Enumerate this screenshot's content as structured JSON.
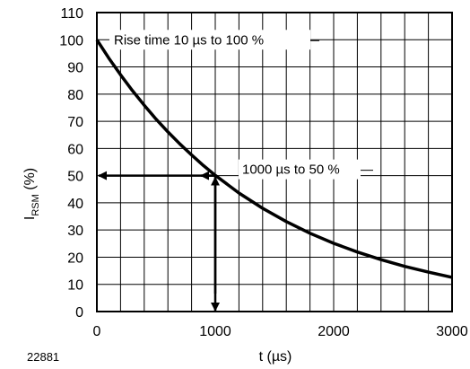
{
  "chart_data": {
    "type": "line",
    "xlabel": "t (µs)",
    "ylabel": {
      "main": "I",
      "sub": "RSM",
      "suffix": " (%)"
    },
    "xlim": [
      0,
      3000
    ],
    "ylim": [
      0,
      110
    ],
    "x_ticks": [
      0,
      1000,
      2000,
      3000
    ],
    "y_ticks": [
      0,
      10,
      20,
      30,
      40,
      50,
      60,
      70,
      80,
      90,
      100,
      110
    ],
    "x_minor_step": 200,
    "y_minor_step": 10,
    "grid": true,
    "series": [
      {
        "x": [
          0,
          100,
          200,
          300,
          400,
          500,
          600,
          700,
          800,
          900,
          1000,
          1200,
          1400,
          1600,
          1800,
          2000,
          2200,
          2400,
          2600,
          2800,
          3000
        ],
        "y": [
          100,
          93.3,
          87.1,
          81.3,
          75.9,
          70.8,
          66.1,
          61.7,
          57.6,
          53.7,
          50.1,
          43.6,
          38.0,
          33.1,
          28.8,
          25.1,
          21.9,
          19.1,
          16.6,
          14.5,
          12.6
        ]
      }
    ],
    "annotations": [
      {
        "text": "Rise time 10 µs to 100 %",
        "x": 0,
        "y": 100
      },
      {
        "text": "1000 µs to 50 %",
        "x": 1000,
        "y": 50
      }
    ],
    "figure_ref": "22881"
  }
}
